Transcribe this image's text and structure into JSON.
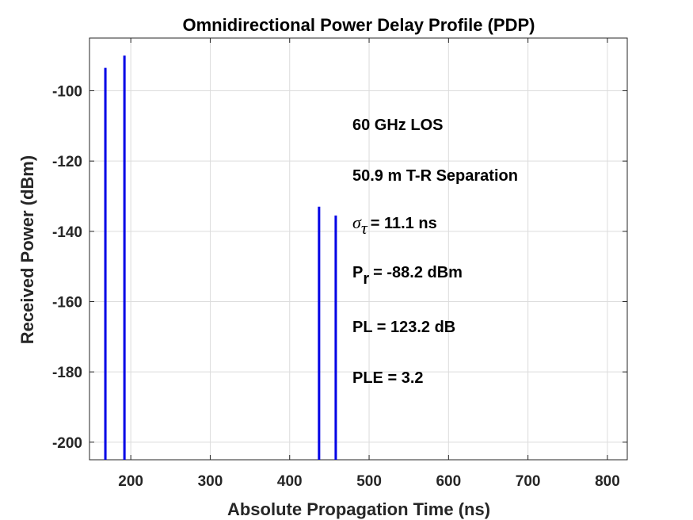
{
  "chart_data": {
    "type": "bar",
    "title": "Omnidirectional Power Delay Profile (PDP)",
    "xlabel": "Absolute Propagation Time (ns)",
    "ylabel": "Received Power (dBm)",
    "xlim": [
      148,
      825
    ],
    "ylim": [
      -205,
      -85
    ],
    "xticks": [
      200,
      300,
      400,
      500,
      600,
      700,
      800
    ],
    "yticks": [
      -200,
      -180,
      -160,
      -140,
      -120,
      -100
    ],
    "grid": true,
    "series": [
      {
        "color": "#0000e6",
        "points": [
          {
            "x": 168,
            "y": -93.5
          },
          {
            "x": 192,
            "y": -90
          },
          {
            "x": 437,
            "y": -133
          },
          {
            "x": 458,
            "y": -135.5
          }
        ]
      }
    ],
    "annotations": {
      "los": "60 GHz LOS",
      "separation": "50.9 m T-R Separation",
      "sigma_symbol": "σ",
      "sigma_sub": "τ",
      "sigma_value": "= 11.1 ns",
      "pr_symbol": "P",
      "pr_sub": "r",
      "pr_value": "= -88.2 dBm",
      "pl": "PL = 123.2 dB",
      "ple": "PLE = 3.2"
    }
  }
}
